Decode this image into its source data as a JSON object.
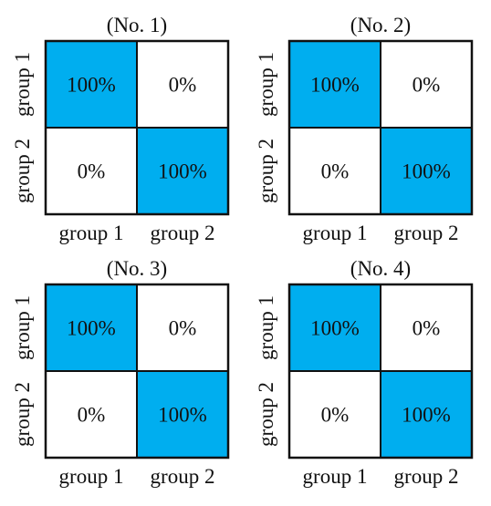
{
  "colors": {
    "highlight": "#00AEEF",
    "empty": "#FFFFFF",
    "border": "#111111"
  },
  "chart_data": [
    {
      "type": "heatmap",
      "title": "(No. 1)",
      "row_labels": [
        "group 1",
        "group 2"
      ],
      "col_labels": [
        "group 1",
        "group 2"
      ],
      "values": [
        [
          100,
          0
        ],
        [
          0,
          100
        ]
      ],
      "cell_text": [
        [
          "100%",
          "0%"
        ],
        [
          "0%",
          "100%"
        ]
      ]
    },
    {
      "type": "heatmap",
      "title": "(No. 2)",
      "row_labels": [
        "group 1",
        "group 2"
      ],
      "col_labels": [
        "group 1",
        "group 2"
      ],
      "values": [
        [
          100,
          0
        ],
        [
          0,
          100
        ]
      ],
      "cell_text": [
        [
          "100%",
          "0%"
        ],
        [
          "0%",
          "100%"
        ]
      ]
    },
    {
      "type": "heatmap",
      "title": "(No. 3)",
      "row_labels": [
        "group 1",
        "group 2"
      ],
      "col_labels": [
        "group 1",
        "group 2"
      ],
      "values": [
        [
          100,
          0
        ],
        [
          0,
          100
        ]
      ],
      "cell_text": [
        [
          "100%",
          "0%"
        ],
        [
          "0%",
          "100%"
        ]
      ]
    },
    {
      "type": "heatmap",
      "title": "(No. 4)",
      "row_labels": [
        "group 1",
        "group 2"
      ],
      "col_labels": [
        "group 1",
        "group 2"
      ],
      "values": [
        [
          100,
          0
        ],
        [
          0,
          100
        ]
      ],
      "cell_text": [
        [
          "100%",
          "0%"
        ],
        [
          "0%",
          "100%"
        ]
      ]
    }
  ]
}
